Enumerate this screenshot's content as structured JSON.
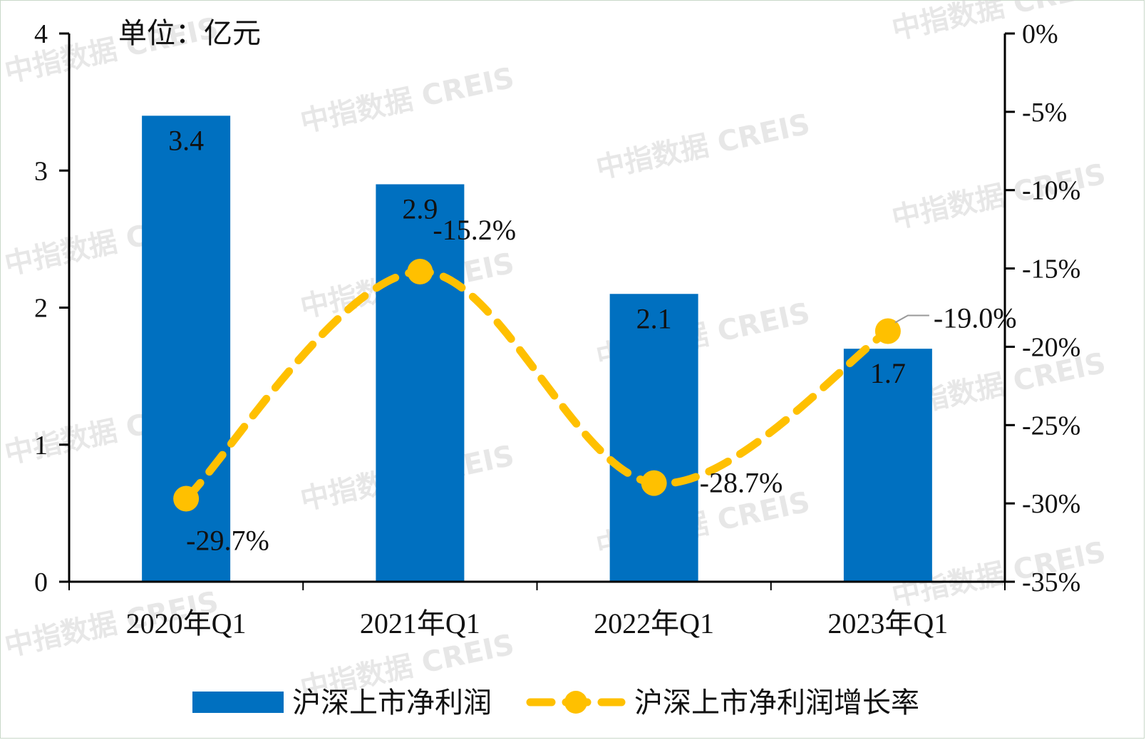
{
  "chart_data": {
    "type": "bar",
    "unit_label": "单位：亿元",
    "categories": [
      "2020年Q1",
      "2021年Q1",
      "2022年Q1",
      "2023年Q1"
    ],
    "series": [
      {
        "name": "沪深上市净利润",
        "type": "bar",
        "axis": "left",
        "color": "#0070c0",
        "values": [
          3.4,
          2.9,
          2.1,
          1.7
        ],
        "labels": [
          "3.4",
          "2.9",
          "2.1",
          "1.7"
        ]
      },
      {
        "name": "沪深上市净利润增长率",
        "type": "line",
        "axis": "right",
        "style": "dashed",
        "color": "#ffc000",
        "values": [
          -29.7,
          -15.2,
          -28.7,
          -19.0
        ],
        "labels": [
          "-29.7%",
          "-15.2%",
          "-28.7%",
          "-19.0%"
        ]
      }
    ],
    "y_left": {
      "ylim": [
        0,
        4
      ],
      "ticks": [
        "0",
        "1",
        "2",
        "3",
        "4"
      ]
    },
    "y_right": {
      "ylim": [
        -35,
        0
      ],
      "ticks": [
        "0%",
        "-5%",
        "-10%",
        "-15%",
        "-20%",
        "-25%",
        "-30%",
        "-35%"
      ]
    },
    "grid": false,
    "legend_position": "bottom",
    "watermark": "中指数据 CREIS"
  }
}
